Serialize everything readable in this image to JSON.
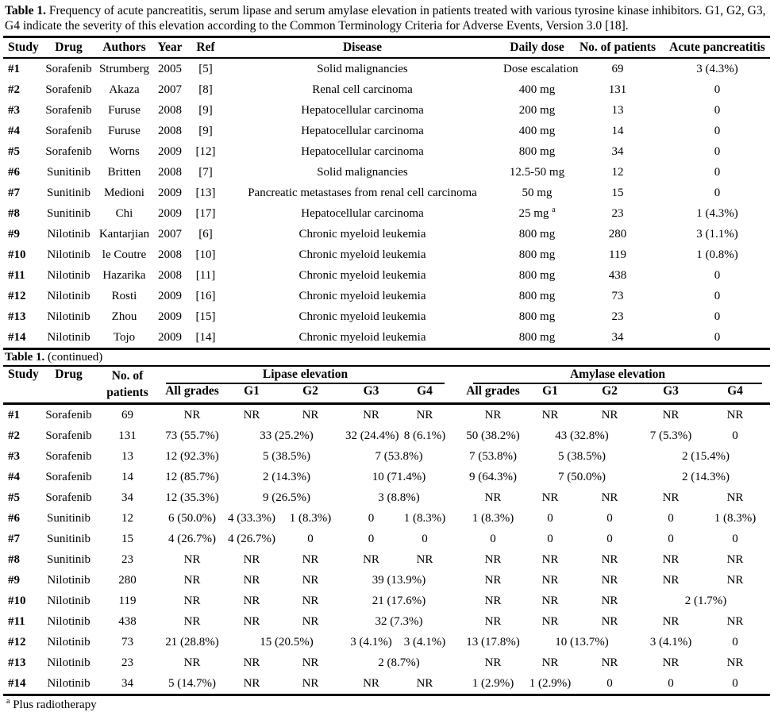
{
  "page": {
    "background": "#ffffff",
    "text_color": "#000000"
  },
  "caption": {
    "lead": "Table 1.",
    "text": " Frequency of acute pancreatitis, serum lipase and serum amylase elevation in patients treated with various tyrosine kinase inhibitors. G1, G2, G3, G4 indicate the severity of this elevation according to the Common Terminology Criteria for Adverse Events, Version 3.0 [18]."
  },
  "table1": {
    "headers": [
      "Study",
      "Drug",
      "Authors",
      "Year",
      "Ref",
      "Disease",
      "Daily dose",
      "No. of patients",
      "Acute pancreatitis"
    ],
    "rows": [
      {
        "study": "#1",
        "drug": "Sorafenib",
        "author": "Strumberg",
        "year": "2005",
        "ref": "[5]",
        "disease": "Solid malignancies",
        "dose": "Dose escalation",
        "dose_sup": "",
        "n": "69",
        "pancreatitis": "3 (4.3%)"
      },
      {
        "study": "#2",
        "drug": "Sorafenib",
        "author": "Akaza",
        "year": "2007",
        "ref": "[8]",
        "disease": "Renal cell carcinoma",
        "dose": "400 mg",
        "dose_sup": "",
        "n": "131",
        "pancreatitis": "0"
      },
      {
        "study": "#3",
        "drug": "Sorafenib",
        "author": "Furuse",
        "year": "2008",
        "ref": "[9]",
        "disease": "Hepatocellular carcinoma",
        "dose": "200 mg",
        "dose_sup": "",
        "n": "13",
        "pancreatitis": "0"
      },
      {
        "study": "#4",
        "drug": "Sorafenib",
        "author": "Furuse",
        "year": "2008",
        "ref": "[9]",
        "disease": "Hepatocellular carcinoma",
        "dose": "400 mg",
        "dose_sup": "",
        "n": "14",
        "pancreatitis": "0"
      },
      {
        "study": "#5",
        "drug": "Sorafenib",
        "author": "Worns",
        "year": "2009",
        "ref": "[12]",
        "disease": "Hepatocellular carcinoma",
        "dose": "800 mg",
        "dose_sup": "",
        "n": "34",
        "pancreatitis": "0"
      },
      {
        "study": "#6",
        "drug": "Sunitinib",
        "author": "Britten",
        "year": "2008",
        "ref": "[7]",
        "disease": "Solid malignancies",
        "dose": "12.5-50 mg",
        "dose_sup": "",
        "n": "12",
        "pancreatitis": "0"
      },
      {
        "study": "#7",
        "drug": "Sunitinib",
        "author": "Medioni",
        "year": "2009",
        "ref": "[13]",
        "disease": "Pancreatic metastases from renal cell carcinoma",
        "dose": "50 mg",
        "dose_sup": "",
        "n": "15",
        "pancreatitis": "0"
      },
      {
        "study": "#8",
        "drug": "Sunitinib",
        "author": "Chi",
        "year": "2009",
        "ref": "[17]",
        "disease": "Hepatocellular carcinoma",
        "dose": "25 mg",
        "dose_sup": "a",
        "n": "23",
        "pancreatitis": "1 (4.3%)"
      },
      {
        "study": "#9",
        "drug": "Nilotinib",
        "author": "Kantarjian",
        "year": "2007",
        "ref": "[6]",
        "disease": "Chronic myeloid leukemia",
        "dose": "800 mg",
        "dose_sup": "",
        "n": "280",
        "pancreatitis": "3 (1.1%)"
      },
      {
        "study": "#10",
        "drug": "Nilotinib",
        "author": "le Coutre",
        "year": "2008",
        "ref": "[10]",
        "disease": "Chronic myeloid leukemia",
        "dose": "800 mg",
        "dose_sup": "",
        "n": "119",
        "pancreatitis": "1 (0.8%)"
      },
      {
        "study": "#11",
        "drug": "Nilotinib",
        "author": "Hazarika",
        "year": "2008",
        "ref": "[11]",
        "disease": "Chronic myeloid leukemia",
        "dose": "800 mg",
        "dose_sup": "",
        "n": "438",
        "pancreatitis": "0"
      },
      {
        "study": "#12",
        "drug": "Nilotinib",
        "author": "Rosti",
        "year": "2009",
        "ref": "[16]",
        "disease": "Chronic myeloid leukemia",
        "dose": "800 mg",
        "dose_sup": "",
        "n": "73",
        "pancreatitis": "0"
      },
      {
        "study": "#13",
        "drug": "Nilotinib",
        "author": "Zhou",
        "year": "2009",
        "ref": "[15]",
        "disease": "Chronic myeloid leukemia",
        "dose": "800 mg",
        "dose_sup": "",
        "n": "23",
        "pancreatitis": "0"
      },
      {
        "study": "#14",
        "drug": "Nilotinib",
        "author": "Tojo",
        "year": "2009",
        "ref": "[14]",
        "disease": "Chronic myeloid leukemia",
        "dose": "800 mg",
        "dose_sup": "",
        "n": "34",
        "pancreatitis": "0"
      }
    ]
  },
  "continued": {
    "lead": "Table 1.",
    "text": " (continued)"
  },
  "table2": {
    "headers": {
      "study": "Study",
      "drug": "Drug",
      "patients_line1": "No. of",
      "patients_line2": "patients",
      "lipase_group": "Lipase elevation",
      "amylase_group": "Amylase elevation",
      "grades": [
        "All grades",
        "G1",
        "G2",
        "G3",
        "G4"
      ]
    },
    "rows": [
      {
        "study": "#1",
        "drug": "Sorafenib",
        "n": "69",
        "lipase": [
          {
            "t": "NR",
            "s": 1
          },
          {
            "t": "NR",
            "s": 1
          },
          {
            "t": "NR",
            "s": 1
          },
          {
            "t": "NR",
            "s": 1
          },
          {
            "t": "NR",
            "s": 1
          }
        ],
        "amylase": [
          {
            "t": "NR",
            "s": 1
          },
          {
            "t": "NR",
            "s": 1
          },
          {
            "t": "NR",
            "s": 1
          },
          {
            "t": "NR",
            "s": 1
          },
          {
            "t": "NR",
            "s": 1
          }
        ]
      },
      {
        "study": "#2",
        "drug": "Sorafenib",
        "n": "131",
        "lipase": [
          {
            "t": "73 (55.7%)",
            "s": 1
          },
          {
            "t": "33 (25.2%)",
            "s": 2
          },
          {
            "t": "32 (24.4%)",
            "s": 1
          },
          {
            "t": "8 (6.1%)",
            "s": 1
          }
        ],
        "amylase": [
          {
            "t": "50 (38.2%)",
            "s": 1
          },
          {
            "t": "43 (32.8%)",
            "s": 2
          },
          {
            "t": "7 (5.3%)",
            "s": 1
          },
          {
            "t": "0",
            "s": 1
          }
        ]
      },
      {
        "study": "#3",
        "drug": "Sorafenib",
        "n": "13",
        "lipase": [
          {
            "t": "12 (92.3%)",
            "s": 1
          },
          {
            "t": "5 (38.5%)",
            "s": 2
          },
          {
            "t": "7 (53.8%)",
            "s": 2
          }
        ],
        "amylase": [
          {
            "t": "7 (53.8%)",
            "s": 1
          },
          {
            "t": "5 (38.5%)",
            "s": 2
          },
          {
            "t": "2 (15.4%)",
            "s": 2
          }
        ]
      },
      {
        "study": "#4",
        "drug": "Sorafenib",
        "n": "14",
        "lipase": [
          {
            "t": "12 (85.7%)",
            "s": 1
          },
          {
            "t": "2 (14.3%)",
            "s": 2
          },
          {
            "t": "10 (71.4%)",
            "s": 2
          }
        ],
        "amylase": [
          {
            "t": "9 (64.3%)",
            "s": 1
          },
          {
            "t": "7 (50.0%)",
            "s": 2
          },
          {
            "t": "2 (14.3%)",
            "s": 2
          }
        ]
      },
      {
        "study": "#5",
        "drug": "Sorafenib",
        "n": "34",
        "lipase": [
          {
            "t": "12 (35.3%)",
            "s": 1
          },
          {
            "t": "9 (26.5%)",
            "s": 2
          },
          {
            "t": "3 (8.8%)",
            "s": 2
          }
        ],
        "amylase": [
          {
            "t": "NR",
            "s": 1
          },
          {
            "t": "NR",
            "s": 1
          },
          {
            "t": "NR",
            "s": 1
          },
          {
            "t": "NR",
            "s": 1
          },
          {
            "t": "NR",
            "s": 1
          }
        ]
      },
      {
        "study": "#6",
        "drug": "Sunitinib",
        "n": "12",
        "lipase": [
          {
            "t": "6 (50.0%)",
            "s": 1
          },
          {
            "t": "4 (33.3%)",
            "s": 1
          },
          {
            "t": "1 (8.3%)",
            "s": 1
          },
          {
            "t": "0",
            "s": 1
          },
          {
            "t": "1 (8.3%)",
            "s": 1
          }
        ],
        "amylase": [
          {
            "t": "1 (8.3%)",
            "s": 1
          },
          {
            "t": "0",
            "s": 1
          },
          {
            "t": "0",
            "s": 1
          },
          {
            "t": "0",
            "s": 1
          },
          {
            "t": "1 (8.3%)",
            "s": 1
          }
        ]
      },
      {
        "study": "#7",
        "drug": "Sunitinib",
        "n": "15",
        "lipase": [
          {
            "t": "4 (26.7%)",
            "s": 1
          },
          {
            "t": "4 (26.7%)",
            "s": 1
          },
          {
            "t": "0",
            "s": 1
          },
          {
            "t": "0",
            "s": 1
          },
          {
            "t": "0",
            "s": 1
          }
        ],
        "amylase": [
          {
            "t": "0",
            "s": 1
          },
          {
            "t": "0",
            "s": 1
          },
          {
            "t": "0",
            "s": 1
          },
          {
            "t": "0",
            "s": 1
          },
          {
            "t": "0",
            "s": 1
          }
        ]
      },
      {
        "study": "#8",
        "drug": "Sunitinib",
        "n": "23",
        "lipase": [
          {
            "t": "NR",
            "s": 1
          },
          {
            "t": "NR",
            "s": 1
          },
          {
            "t": "NR",
            "s": 1
          },
          {
            "t": "NR",
            "s": 1
          },
          {
            "t": "NR",
            "s": 1
          }
        ],
        "amylase": [
          {
            "t": "NR",
            "s": 1
          },
          {
            "t": "NR",
            "s": 1
          },
          {
            "t": "NR",
            "s": 1
          },
          {
            "t": "NR",
            "s": 1
          },
          {
            "t": "NR",
            "s": 1
          }
        ]
      },
      {
        "study": "#9",
        "drug": "Nilotinib",
        "n": "280",
        "lipase": [
          {
            "t": "NR",
            "s": 1
          },
          {
            "t": "NR",
            "s": 1
          },
          {
            "t": "NR",
            "s": 1
          },
          {
            "t": "39 (13.9%)",
            "s": 2
          }
        ],
        "amylase": [
          {
            "t": "NR",
            "s": 1
          },
          {
            "t": "NR",
            "s": 1
          },
          {
            "t": "NR",
            "s": 1
          },
          {
            "t": "NR",
            "s": 1
          },
          {
            "t": "NR",
            "s": 1
          }
        ]
      },
      {
        "study": "#10",
        "drug": "Nilotinib",
        "n": "119",
        "lipase": [
          {
            "t": "NR",
            "s": 1
          },
          {
            "t": "NR",
            "s": 1
          },
          {
            "t": "NR",
            "s": 1
          },
          {
            "t": "21 (17.6%)",
            "s": 2
          }
        ],
        "amylase": [
          {
            "t": "NR",
            "s": 1
          },
          {
            "t": "NR",
            "s": 1
          },
          {
            "t": "NR",
            "s": 1
          },
          {
            "t": "2 (1.7%)",
            "s": 2
          }
        ]
      },
      {
        "study": "#11",
        "drug": "Nilotinib",
        "n": "438",
        "lipase": [
          {
            "t": "NR",
            "s": 1
          },
          {
            "t": "NR",
            "s": 1
          },
          {
            "t": "NR",
            "s": 1
          },
          {
            "t": "32 (7.3%)",
            "s": 2
          }
        ],
        "amylase": [
          {
            "t": "NR",
            "s": 1
          },
          {
            "t": "NR",
            "s": 1
          },
          {
            "t": "NR",
            "s": 1
          },
          {
            "t": "NR",
            "s": 1
          },
          {
            "t": "NR",
            "s": 1
          }
        ]
      },
      {
        "study": "#12",
        "drug": "Nilotinib",
        "n": "73",
        "lipase": [
          {
            "t": "21 (28.8%)",
            "s": 1
          },
          {
            "t": "15 (20.5%)",
            "s": 2
          },
          {
            "t": "3 (4.1%)",
            "s": 1
          },
          {
            "t": "3 (4.1%)",
            "s": 1
          }
        ],
        "amylase": [
          {
            "t": "13 (17.8%)",
            "s": 1
          },
          {
            "t": "10 (13.7%)",
            "s": 2
          },
          {
            "t": "3 (4.1%)",
            "s": 1
          },
          {
            "t": "0",
            "s": 1
          }
        ]
      },
      {
        "study": "#13",
        "drug": "Nilotinib",
        "n": "23",
        "lipase": [
          {
            "t": "NR",
            "s": 1
          },
          {
            "t": "NR",
            "s": 1
          },
          {
            "t": "NR",
            "s": 1
          },
          {
            "t": "2 (8.7%)",
            "s": 2
          }
        ],
        "amylase": [
          {
            "t": "NR",
            "s": 1
          },
          {
            "t": "NR",
            "s": 1
          },
          {
            "t": "NR",
            "s": 1
          },
          {
            "t": "NR",
            "s": 1
          },
          {
            "t": "NR",
            "s": 1
          }
        ]
      },
      {
        "study": "#14",
        "drug": "Nilotinib",
        "n": "34",
        "lipase": [
          {
            "t": "5 (14.7%)",
            "s": 1
          },
          {
            "t": "NR",
            "s": 1
          },
          {
            "t": "NR",
            "s": 1
          },
          {
            "t": "NR",
            "s": 1
          },
          {
            "t": "NR",
            "s": 1
          }
        ],
        "amylase": [
          {
            "t": "1 (2.9%)",
            "s": 1
          },
          {
            "t": "1 (2.9%)",
            "s": 1
          },
          {
            "t": "0",
            "s": 1
          },
          {
            "t": "0",
            "s": 1
          },
          {
            "t": "0",
            "s": 1
          }
        ]
      }
    ]
  },
  "footnote": {
    "marker": "a",
    "text": " Plus radiotherapy"
  }
}
